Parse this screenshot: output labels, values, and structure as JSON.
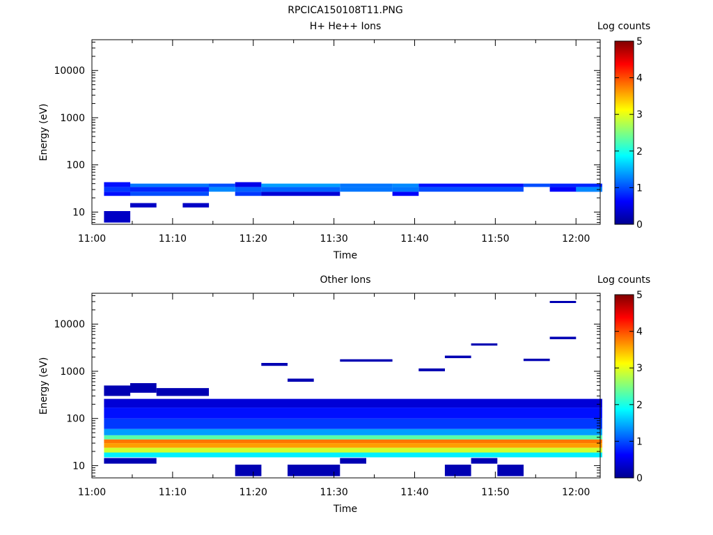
{
  "figure": {
    "title": "RPCICA150108T11.PNG"
  },
  "colorscale": [
    "#00008f",
    "#0000ff",
    "#0080ff",
    "#00ffff",
    "#80ff80",
    "#ffff00",
    "#ff8000",
    "#ff0000",
    "#800000"
  ],
  "chart_data": [
    {
      "type": "heatmap",
      "title": "H+ He++ Ions",
      "xlabel": "Time",
      "ylabel": "Energy (eV)",
      "yscale": "log",
      "ylim": [
        5.5,
        45000
      ],
      "xlim": [
        "11:00",
        "12:03"
      ],
      "xticks": [
        "11:00",
        "11:10",
        "11:20",
        "11:30",
        "11:40",
        "11:50",
        "12:00"
      ],
      "yticks": [
        "10",
        "100",
        "1000",
        "10000"
      ],
      "colorbar": {
        "label": "Log counts",
        "range": [
          0,
          5
        ],
        "ticks": [
          "0",
          "1",
          "2",
          "3",
          "4",
          "5"
        ]
      },
      "time_bins": [
        "11:01:30",
        "11:04:45",
        "11:08:00",
        "11:11:15",
        "11:14:30",
        "11:17:45",
        "11:21:00",
        "11:24:15",
        "11:27:30",
        "11:30:45",
        "11:34:00",
        "11:37:15",
        "11:40:30",
        "11:43:45",
        "11:47:00",
        "11:50:15",
        "11:53:30",
        "11:56:45",
        "12:00:00",
        "12:03:15"
      ],
      "cells": [
        {
          "t0": "11:01:30",
          "t1": "11:04:45",
          "e0": 6,
          "e1": 10.5,
          "v": 0.3
        },
        {
          "t0": "11:04:45",
          "t1": "11:08:00",
          "e0": 12.5,
          "e1": 15.5,
          "v": 0.3
        },
        {
          "t0": "11:11:15",
          "t1": "11:14:30",
          "e0": 12.5,
          "e1": 15.5,
          "v": 0.3
        },
        {
          "t0": "11:01:30",
          "t1": "11:04:45",
          "e0": 22,
          "e1": 27,
          "v": 0.7
        },
        {
          "t0": "11:01:30",
          "t1": "11:04:45",
          "e0": 27,
          "e1": 34,
          "v": 0.9
        },
        {
          "t0": "11:01:30",
          "t1": "11:04:45",
          "e0": 34,
          "e1": 43,
          "v": 0.7
        },
        {
          "t0": "11:04:45",
          "t1": "11:14:30",
          "e0": 22,
          "e1": 27,
          "v": 1.0
        },
        {
          "t0": "11:04:45",
          "t1": "11:14:30",
          "e0": 27,
          "e1": 34,
          "v": 0.8
        },
        {
          "t0": "11:04:45",
          "t1": "11:14:30",
          "e0": 34,
          "e1": 40,
          "v": 1.2
        },
        {
          "t0": "11:14:30",
          "t1": "11:17:45",
          "e0": 27,
          "e1": 34,
          "v": 1.3
        },
        {
          "t0": "11:14:30",
          "t1": "11:17:45",
          "e0": 34,
          "e1": 40,
          "v": 1.0
        },
        {
          "t0": "11:17:45",
          "t1": "11:21:00",
          "e0": 22,
          "e1": 27,
          "v": 0.9
        },
        {
          "t0": "11:17:45",
          "t1": "11:21:00",
          "e0": 27,
          "e1": 34,
          "v": 1.1
        },
        {
          "t0": "11:17:45",
          "t1": "11:21:00",
          "e0": 34,
          "e1": 43,
          "v": 0.5
        },
        {
          "t0": "11:21:00",
          "t1": "11:30:45",
          "e0": 22,
          "e1": 27,
          "v": 0.4
        },
        {
          "t0": "11:21:00",
          "t1": "11:30:45",
          "e0": 27,
          "e1": 34,
          "v": 1.1
        },
        {
          "t0": "11:21:00",
          "t1": "11:30:45",
          "e0": 34,
          "e1": 40,
          "v": 1.4
        },
        {
          "t0": "11:30:45",
          "t1": "11:37:15",
          "e0": 27,
          "e1": 34,
          "v": 1.2
        },
        {
          "t0": "11:30:45",
          "t1": "11:37:15",
          "e0": 34,
          "e1": 40,
          "v": 1.2
        },
        {
          "t0": "11:37:15",
          "t1": "11:40:30",
          "e0": 22,
          "e1": 27,
          "v": 0.6
        },
        {
          "t0": "11:37:15",
          "t1": "11:40:30",
          "e0": 27,
          "e1": 34,
          "v": 1.2
        },
        {
          "t0": "11:37:15",
          "t1": "11:40:30",
          "e0": 34,
          "e1": 40,
          "v": 1.3
        },
        {
          "t0": "11:40:30",
          "t1": "11:53:30",
          "e0": 27,
          "e1": 34,
          "v": 1.0
        },
        {
          "t0": "11:40:30",
          "t1": "11:53:30",
          "e0": 34,
          "e1": 40,
          "v": 0.7
        },
        {
          "t0": "11:53:30",
          "t1": "11:56:45",
          "e0": 34,
          "e1": 40,
          "v": 1.0
        },
        {
          "t0": "11:56:45",
          "t1": "12:03:15",
          "e0": 27,
          "e1": 34,
          "v": 0.6
        },
        {
          "t0": "11:56:45",
          "t1": "12:03:15",
          "e0": 34,
          "e1": 40,
          "v": 0.8
        },
        {
          "t0": "12:00:00",
          "t1": "12:03:15",
          "e0": 27,
          "e1": 34,
          "v": 1.3
        }
      ]
    },
    {
      "type": "heatmap",
      "title": "Other Ions",
      "xlabel": "Time",
      "ylabel": "Energy (eV)",
      "yscale": "log",
      "ylim": [
        5.5,
        45000
      ],
      "xlim": [
        "11:00",
        "12:03"
      ],
      "xticks": [
        "11:00",
        "11:10",
        "11:20",
        "11:30",
        "11:40",
        "11:50",
        "12:00"
      ],
      "yticks": [
        "10",
        "100",
        "1000",
        "10000"
      ],
      "colorbar": {
        "label": "Log counts",
        "range": [
          0,
          5
        ],
        "ticks": [
          "0",
          "1",
          "2",
          "3",
          "4",
          "5"
        ]
      },
      "cells": [
        {
          "t0": "11:01:30",
          "t1": "11:08:00",
          "e0": 11,
          "e1": 14.5,
          "v": 0.2
        },
        {
          "t0": "11:17:45",
          "t1": "11:21:00",
          "e0": 6,
          "e1": 10.5,
          "v": 0.2
        },
        {
          "t0": "11:24:15",
          "t1": "11:30:45",
          "e0": 6,
          "e1": 10.5,
          "v": 0.2
        },
        {
          "t0": "11:30:45",
          "t1": "11:34:00",
          "e0": 11,
          "e1": 14.5,
          "v": 0.2
        },
        {
          "t0": "11:43:45",
          "t1": "11:47:00",
          "e0": 6,
          "e1": 10.5,
          "v": 0.2
        },
        {
          "t0": "11:47:00",
          "t1": "11:50:15",
          "e0": 11,
          "e1": 14.5,
          "v": 0.2
        },
        {
          "t0": "11:50:15",
          "t1": "11:53:30",
          "e0": 6,
          "e1": 10.5,
          "v": 0.2
        },
        {
          "t0": "11:01:30",
          "t1": "12:03:15",
          "e0": 15,
          "e1": 19,
          "v": 1.8
        },
        {
          "t0": "11:01:30",
          "t1": "12:03:15",
          "e0": 19,
          "e1": 24,
          "v": 2.9
        },
        {
          "t0": "11:01:30",
          "t1": "12:03:15",
          "e0": 24,
          "e1": 30,
          "v": 3.6
        },
        {
          "t0": "11:01:30",
          "t1": "12:03:15",
          "e0": 30,
          "e1": 36,
          "v": 3.8
        },
        {
          "t0": "11:01:30",
          "t1": "12:03:15",
          "e0": 36,
          "e1": 44,
          "v": 2.3
        },
        {
          "t0": "11:01:30",
          "t1": "12:03:15",
          "e0": 44,
          "e1": 60,
          "v": 1.4
        },
        {
          "t0": "11:01:30",
          "t1": "12:03:15",
          "e0": 60,
          "e1": 100,
          "v": 0.9
        },
        {
          "t0": "11:01:30",
          "t1": "12:03:15",
          "e0": 100,
          "e1": 170,
          "v": 0.7
        },
        {
          "t0": "11:01:30",
          "t1": "12:03:15",
          "e0": 170,
          "e1": 260,
          "v": 0.4
        },
        {
          "t0": "11:01:30",
          "t1": "11:04:45",
          "e0": 300,
          "e1": 500,
          "v": 0.2
        },
        {
          "t0": "11:04:45",
          "t1": "11:08:00",
          "e0": 350,
          "e1": 560,
          "v": 0.2
        },
        {
          "t0": "11:08:00",
          "t1": "11:14:30",
          "e0": 300,
          "e1": 440,
          "v": 0.2
        },
        {
          "t0": "11:21:00",
          "t1": "11:24:15",
          "e0": 1300,
          "e1": 1500,
          "v": 0.2
        },
        {
          "t0": "11:24:15",
          "t1": "11:27:30",
          "e0": 600,
          "e1": 700,
          "v": 0.2
        },
        {
          "t0": "11:30:45",
          "t1": "11:37:15",
          "e0": 1600,
          "e1": 1800,
          "v": 0.2
        },
        {
          "t0": "11:40:30",
          "t1": "11:43:45",
          "e0": 1000,
          "e1": 1150,
          "v": 0.2
        },
        {
          "t0": "11:43:45",
          "t1": "11:47:00",
          "e0": 1900,
          "e1": 2150,
          "v": 0.2
        },
        {
          "t0": "11:47:00",
          "t1": "11:50:15",
          "e0": 3500,
          "e1": 3900,
          "v": 0.2
        },
        {
          "t0": "11:53:30",
          "t1": "11:56:45",
          "e0": 1650,
          "e1": 1850,
          "v": 0.2
        },
        {
          "t0": "11:56:45",
          "t1": "12:00:00",
          "e0": 4800,
          "e1": 5400,
          "v": 0.2
        },
        {
          "t0": "11:56:45",
          "t1": "12:00:00",
          "e0": 28000,
          "e1": 31000,
          "v": 0.2
        }
      ]
    }
  ]
}
